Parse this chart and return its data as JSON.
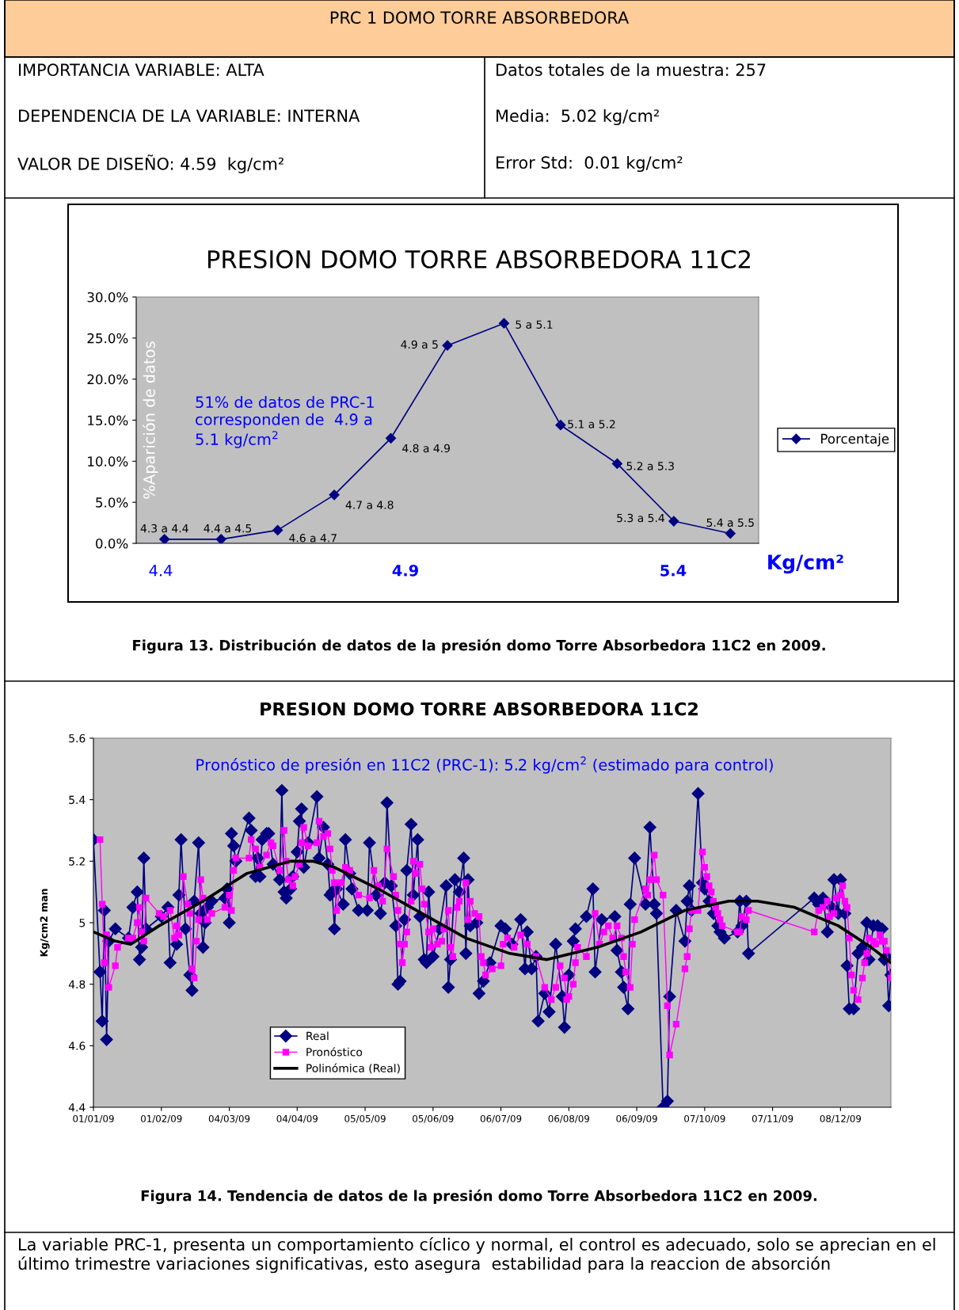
{
  "chart_data": [
    {
      "type": "other",
      "title": "PRC 1 DOMO TORRE ABSORBEDORA",
      "annotations": [
        "IMPORTANCIA VARIABLE: ALTA",
        "DEPENDENCIA DE LA VARIABLE: INTERNA",
        "VALOR DE DISEÑO: 4.59  kg/cm²",
        "Datos totales de la muestra: 257",
        "Media:  5.02 kg/cm²",
        "Error Std:  0.01 kg/cm²"
      ]
    },
    {
      "type": "line",
      "title": "PRESION DOMO TORRE ABSORBEDORA 11C2",
      "ylabel": "%Aparición de datos",
      "xlabel": "Kg/cm²",
      "categories": [
        null,
        null,
        null,
        null,
        null,
        null,
        null,
        null,
        null,
        null,
        null
      ],
      "series": [
        {
          "name": "Porcentaje",
          "color": "#000080",
          "values": [
            0.5,
            0.5,
            1.6,
            5.9,
            12.8,
            24.1,
            26.8,
            14.4,
            9.7,
            2.7,
            1.2
          ]
        }
      ],
      "marker": "diamond",
      "line_style": "solid",
      "ylim": [
        0,
        30
      ],
      "yticks": [
        {
          "value": 0,
          "label": "0.0%"
        },
        {
          "value": 5,
          "label": "5.0%"
        },
        {
          "value": 10,
          "label": "10.0%"
        },
        {
          "value": 15,
          "label": "15.0%"
        },
        {
          "value": 20,
          "label": "20.0%"
        },
        {
          "value": 25,
          "label": "25.0%"
        },
        {
          "value": 30,
          "label": "30.0%"
        }
      ],
      "tick_labels": "y",
      "grid": false,
      "legend": "right",
      "annotations": [
        "4.3 a 4.4",
        "4.4 a 4.5",
        "4.6 a 4.7",
        "4.7 a 4.8",
        "4.8 a 4.9",
        "4.9 a 5",
        "5 a 5.1",
        "5.1 a 5.2",
        "5.2 a 5.3",
        "5.3 a 5.4",
        "5.4 a 5.5",
        "51% de datos de PRC-1\ncorresponden de  4.9 a\n5.1 kg/cm$^{2}$",
        "4.4",
        "4.9",
        "5.4",
        "Figura 13. Distribución de datos de la presión domo Torre Absorbedora 11C2 en 2009."
      ]
    },
    {
      "type": "line",
      "title": "PRESION DOMO TORRE ABSORBEDORA 11C2",
      "ylabel": "Kg/cm2 man",
      "series": [
        {
          "name": "Real",
          "color": "#000080",
          "marker": "diamond",
          "x": [
            "2009-01-01",
            "2009-01-04",
            "2009-01-05",
            "2009-01-06",
            "2009-01-07",
            "2009-01-08",
            "2009-01-11",
            "2009-01-17",
            "2009-01-19",
            "2009-01-21",
            "2009-01-22",
            "2009-01-23",
            "2009-01-24",
            "2009-01-25",
            "2009-02-01",
            "2009-02-04",
            "2009-02-05",
            "2009-02-08",
            "2009-02-09",
            "2009-02-10",
            "2009-02-12",
            "2009-02-14",
            "2009-02-15",
            "2009-02-16",
            "2009-02-18",
            "2009-02-19",
            "2009-02-20",
            "2009-02-21",
            "2009-02-22",
            "2009-02-24",
            "2009-03-02",
            "2009-03-03",
            "2009-03-04",
            "2009-03-05",
            "2009-03-06",
            "2009-03-07",
            "2009-03-13",
            "2009-03-14",
            "2009-03-16",
            "2009-03-17",
            "2009-03-18",
            "2009-03-19",
            "2009-03-21",
            "2009-03-22",
            "2009-03-24",
            "2009-03-27",
            "2009-03-28",
            "2009-03-29",
            "2009-03-30",
            "2009-04-01",
            "2009-04-02",
            "2009-04-04",
            "2009-04-05",
            "2009-04-06",
            "2009-04-07",
            "2009-04-09",
            "2009-04-13",
            "2009-04-14",
            "2009-04-16",
            "2009-04-18",
            "2009-04-19",
            "2009-04-20",
            "2009-04-21",
            "2009-04-22",
            "2009-04-25",
            "2009-04-26",
            "2009-04-28",
            "2009-04-29",
            "2009-05-02",
            "2009-05-06",
            "2009-05-07",
            "2009-05-10",
            "2009-05-12",
            "2009-05-14",
            "2009-05-15",
            "2009-05-17",
            "2009-05-19",
            "2009-05-20",
            "2009-05-21",
            "2009-05-23",
            "2009-05-24",
            "2009-05-26",
            "2009-05-27",
            "2009-05-29",
            "2009-05-30",
            "2009-06-01",
            "2009-06-02",
            "2009-06-03",
            "2009-06-05",
            "2009-06-08",
            "2009-06-11",
            "2009-06-12",
            "2009-06-13",
            "2009-06-15",
            "2009-06-17",
            "2009-06-19",
            "2009-06-20",
            "2009-06-21",
            "2009-06-22",
            "2009-06-25",
            "2009-06-26",
            "2009-06-28",
            "2009-07-01",
            "2009-07-06",
            "2009-07-08",
            "2009-07-11",
            "2009-07-15",
            "2009-07-17",
            "2009-07-18",
            "2009-07-20",
            "2009-07-22",
            "2009-07-23",
            "2009-07-26",
            "2009-07-28",
            "2009-07-31",
            "2009-08-03",
            "2009-08-04",
            "2009-08-06",
            "2009-08-08",
            "2009-08-09",
            "2009-08-14",
            "2009-08-17",
            "2009-08-18",
            "2009-08-21",
            "2009-08-27",
            "2009-08-28",
            "2009-08-30",
            "2009-08-31",
            "2009-09-02",
            "2009-09-03",
            "2009-09-05",
            "2009-09-10",
            "2009-09-12",
            "2009-09-14",
            "2009-09-15",
            "2009-09-18",
            "2009-09-20",
            "2009-09-21",
            "2009-09-24",
            "2009-09-28",
            "2009-09-29",
            "2009-09-30",
            "2009-10-01",
            "2009-10-04",
            "2009-10-06",
            "2009-10-07",
            "2009-10-09",
            "2009-10-11",
            "2009-10-13",
            "2009-10-14",
            "2009-10-16",
            "2009-10-22",
            "2009-10-23",
            "2009-10-24",
            "2009-10-26",
            "2009-10-27",
            "2009-11-26",
            "2009-11-28",
            "2009-11-30",
            "2009-12-02",
            "2009-12-04",
            "2009-12-05",
            "2009-12-07",
            "2009-12-08",
            "2009-12-10",
            "2009-12-11",
            "2009-12-12",
            "2009-12-14",
            "2009-12-16",
            "2009-12-18",
            "2009-12-20",
            "2009-12-21",
            "2009-12-23",
            "2009-12-25",
            "2009-12-27",
            "2009-12-28",
            "2009-12-29",
            "2009-12-30",
            "2009-12-31"
          ],
          "values": [
            5.27,
            4.84,
            4.68,
            5.04,
            4.62,
            4.94,
            4.98,
            4.95,
            5.05,
            5.1,
            4.88,
            4.92,
            5.21,
            4.98,
            5.02,
            5.05,
            4.87,
            4.93,
            5.09,
            5.27,
            4.98,
            4.83,
            4.78,
            5.07,
            5.26,
            5.03,
            4.92,
            5.0,
            5.05,
            5.07,
            5.08,
            5.11,
            5.0,
            5.29,
            5.25,
            5.2,
            5.34,
            5.3,
            5.15,
            5.21,
            5.15,
            5.27,
            5.29,
            5.29,
            5.19,
            5.14,
            5.43,
            5.1,
            5.08,
            5.11,
            5.15,
            5.23,
            5.33,
            5.37,
            5.18,
            5.26,
            5.41,
            5.21,
            5.31,
            5.19,
            5.09,
            5.1,
            4.98,
            5.11,
            5.06,
            5.27,
            5.16,
            5.11,
            5.04,
            5.04,
            5.26,
            5.09,
            5.03,
            5.13,
            5.39,
            5.12,
            4.99,
            4.8,
            4.81,
            5.01,
            5.17,
            5.32,
            5.09,
            5.27,
            5.02,
            4.88,
            4.87,
            5.1,
            4.89,
            4.98,
            5.12,
            4.79,
            4.88,
            5.14,
            5.1,
            5.21,
            4.9,
            5.14,
            4.99,
            5.0,
            4.77,
            4.81,
            4.87,
            4.99,
            4.98,
            4.93,
            5.01,
            4.85,
            4.97,
            4.85,
            4.89,
            4.68,
            4.77,
            4.71,
            4.93,
            4.76,
            4.66,
            4.83,
            4.94,
            4.98,
            5.02,
            5.11,
            4.84,
            5.01,
            5.02,
            4.91,
            4.84,
            4.79,
            4.72,
            5.06,
            5.21,
            5.06,
            5.31,
            5.06,
            5.03,
            4.4,
            4.42,
            4.76,
            5.04,
            4.94,
            5.07,
            5.12,
            5.04,
            5.42,
            5.13,
            5.11,
            5.07,
            5.03,
            4.99,
            4.97,
            4.95,
            4.97,
            5.07,
            4.99,
            5.07,
            4.9,
            5.08,
            5.06,
            5.08,
            4.97,
            5.05,
            5.14,
            5.03,
            5.14,
            5.03,
            4.86,
            4.72,
            4.72,
            4.9,
            4.92,
            5.0,
            4.88,
            4.99,
            4.99,
            4.98,
            4.88,
            4.89,
            4.73,
            4.83
          ]
        },
        {
          "name": "Pronóstico",
          "color": "#ff00ff",
          "marker": "square",
          "x": [
            "2009-01-04",
            "2009-01-05",
            "2009-01-06",
            "2009-01-07",
            "2009-01-08",
            "2009-01-11",
            "2009-01-12",
            "2009-01-17",
            "2009-01-19",
            "2009-01-21",
            "2009-01-22",
            "2009-01-23",
            "2009-01-24",
            "2009-01-25",
            "2009-01-31",
            "2009-02-02",
            "2009-02-05",
            "2009-02-07",
            "2009-02-08",
            "2009-02-09",
            "2009-02-11",
            "2009-02-13",
            "2009-02-14",
            "2009-02-15",
            "2009-02-16",
            "2009-02-17",
            "2009-02-18",
            "2009-02-19",
            "2009-02-20",
            "2009-02-22",
            "2009-02-24",
            "2009-03-02",
            "2009-03-04",
            "2009-03-05",
            "2009-03-06",
            "2009-03-07",
            "2009-03-13",
            "2009-03-14",
            "2009-03-16",
            "2009-03-18",
            "2009-03-21",
            "2009-03-23",
            "2009-03-24",
            "2009-03-27",
            "2009-03-29",
            "2009-03-30",
            "2009-03-31",
            "2009-04-02",
            "2009-04-03",
            "2009-04-05",
            "2009-04-06",
            "2009-04-07",
            "2009-04-09",
            "2009-04-13",
            "2009-04-14",
            "2009-04-16",
            "2009-04-18",
            "2009-04-19",
            "2009-04-20",
            "2009-04-21",
            "2009-04-22",
            "2009-04-24",
            "2009-04-26",
            "2009-04-28",
            "2009-05-02",
            "2009-05-07",
            "2009-05-09",
            "2009-05-11",
            "2009-05-13",
            "2009-05-15",
            "2009-05-18",
            "2009-05-19",
            "2009-05-20",
            "2009-05-21",
            "2009-05-22",
            "2009-05-23",
            "2009-05-24",
            "2009-05-26",
            "2009-05-27",
            "2009-05-28",
            "2009-05-30",
            "2009-05-31",
            "2009-06-01",
            "2009-06-03",
            "2009-06-04",
            "2009-06-05",
            "2009-06-07",
            "2009-06-09",
            "2009-06-10",
            "2009-06-12",
            "2009-06-13",
            "2009-06-14",
            "2009-06-16",
            "2009-06-17",
            "2009-06-20",
            "2009-06-21",
            "2009-06-22",
            "2009-06-24",
            "2009-06-26",
            "2009-06-27",
            "2009-06-28",
            "2009-06-29",
            "2009-07-02",
            "2009-07-06",
            "2009-07-07",
            "2009-07-09",
            "2009-07-12",
            "2009-07-15",
            "2009-07-18",
            "2009-07-22",
            "2009-07-26",
            "2009-07-29",
            "2009-07-31",
            "2009-08-02",
            "2009-08-04",
            "2009-08-05",
            "2009-08-06",
            "2009-08-08",
            "2009-08-09",
            "2009-08-10",
            "2009-08-14",
            "2009-08-18",
            "2009-08-20",
            "2009-08-22",
            "2009-08-24",
            "2009-08-26",
            "2009-08-28",
            "2009-08-30",
            "2009-08-31",
            "2009-09-01",
            "2009-09-03",
            "2009-09-04",
            "2009-09-05",
            "2009-09-10",
            "2009-09-11",
            "2009-09-12",
            "2009-09-14",
            "2009-09-15",
            "2009-09-18",
            "2009-09-20",
            "2009-09-21",
            "2009-09-24",
            "2009-09-28",
            "2009-09-29",
            "2009-09-30",
            "2009-10-01",
            "2009-10-04",
            "2009-10-06",
            "2009-10-07",
            "2009-10-08",
            "2009-10-09",
            "2009-10-10",
            "2009-10-11",
            "2009-10-12",
            "2009-10-13",
            "2009-10-14",
            "2009-10-15",
            "2009-10-22",
            "2009-10-23",
            "2009-10-24",
            "2009-10-26",
            "2009-10-27",
            "2009-11-26",
            "2009-11-28",
            "2009-11-30",
            "2009-12-02",
            "2009-12-03",
            "2009-12-05",
            "2009-12-06",
            "2009-12-08",
            "2009-12-09",
            "2009-12-10",
            "2009-12-11",
            "2009-12-12",
            "2009-12-13",
            "2009-12-14",
            "2009-12-16",
            "2009-12-18",
            "2009-12-19",
            "2009-12-20",
            "2009-12-21",
            "2009-12-23",
            "2009-12-24",
            "2009-12-26",
            "2009-12-27",
            "2009-12-28",
            "2009-12-29",
            "2009-12-31"
          ],
          "values": [
            5.27,
            5.06,
            4.87,
            4.96,
            4.79,
            4.86,
            4.92,
            4.95,
            4.95,
            5.0,
            5.05,
            4.97,
            4.94,
            5.08,
            5.03,
            5.02,
            5.04,
            4.95,
            4.99,
            4.96,
            5.15,
            5.06,
            5.03,
            4.85,
            4.82,
            4.94,
            5.01,
            5.14,
            5.08,
            5.01,
            5.03,
            5.05,
            5.09,
            5.04,
            5.17,
            5.21,
            5.21,
            5.27,
            5.24,
            5.18,
            5.22,
            5.26,
            5.25,
            5.17,
            5.3,
            5.2,
            5.14,
            5.12,
            5.15,
            5.19,
            5.26,
            5.31,
            5.25,
            5.26,
            5.33,
            5.28,
            5.29,
            5.24,
            5.17,
            5.13,
            5.04,
            5.13,
            5.18,
            5.17,
            5.09,
            5.08,
            5.17,
            5.12,
            5.07,
            5.24,
            5.15,
            5.09,
            5.04,
            4.93,
            4.87,
            4.93,
            4.97,
            5.07,
            5.2,
            5.16,
            5.19,
            5.11,
            5.06,
            4.97,
            4.92,
            4.98,
            4.93,
            4.94,
            4.98,
            5.04,
            4.92,
            4.89,
            5.05,
            5.07,
            5.13,
            5.01,
            5.07,
            5.03,
            5.02,
            4.89,
            4.87,
            4.83,
            4.85,
            4.86,
            4.93,
            4.95,
            4.92,
            4.96,
            4.93,
            4.89,
            4.79,
            4.75,
            4.79,
            4.86,
            4.82,
            4.75,
            4.76,
            4.8,
            4.87,
            4.92,
            4.89,
            5.03,
            4.93,
            4.97,
            4.99,
            4.95,
            4.99,
            4.95,
            4.89,
            4.84,
            4.79,
            4.93,
            5.01,
            5.11,
            5.09,
            5.14,
            5.22,
            5.14,
            5.09,
            4.73,
            4.57,
            4.67,
            4.85,
            4.89,
            4.98,
            5.04,
            5.04,
            5.23,
            5.18,
            5.15,
            5.12,
            5.1,
            5.07,
            5.05,
            5.03,
            5.01,
            4.99,
            4.97,
            4.97,
            5.02,
            5.01,
            5.04,
            4.97,
            5.04,
            5.05,
            5.07,
            5.02,
            5.03,
            5.08,
            5.09,
            5.12,
            5.07,
            5.05,
            4.95,
            4.83,
            4.78,
            4.75,
            4.82,
            4.87,
            4.9,
            4.95,
            4.94,
            4.93,
            4.96,
            4.94,
            4.94,
            4.91,
            4.82
          ]
        },
        {
          "name": "Polinómica (Real)",
          "color": "#000000",
          "marker": "none",
          "x": [
            "2009-01-01",
            "2009-01-11",
            "2009-01-18",
            "2009-01-31",
            "2009-02-20",
            "2009-03-12",
            "2009-04-01",
            "2009-04-11",
            "2009-04-21",
            "2009-05-11",
            "2009-05-31",
            "2009-06-20",
            "2009-07-10",
            "2009-07-27",
            "2009-08-19",
            "2009-09-08",
            "2009-09-28",
            "2009-10-18",
            "2009-10-31",
            "2009-11-17",
            "2009-12-07",
            "2009-12-22",
            "2009-12-31"
          ],
          "values": [
            4.97,
            4.94,
            4.93,
            4.99,
            5.07,
            5.16,
            5.2,
            5.2,
            5.18,
            5.11,
            5.03,
            4.95,
            4.9,
            4.88,
            4.92,
            4.97,
            5.04,
            5.07,
            5.07,
            5.05,
            4.99,
            4.92,
            4.87
          ]
        }
      ],
      "line_style": "solid",
      "xlim": [
        "2009-01-01",
        "2009-12-31"
      ],
      "xticks": [
        {
          "value": "2009-01-01",
          "label": "01/01/09"
        },
        {
          "value": "2009-02-01",
          "label": "01/02/09"
        },
        {
          "value": "2009-03-04",
          "label": "04/03/09"
        },
        {
          "value": "2009-04-04",
          "label": "04/04/09"
        },
        {
          "value": "2009-05-05",
          "label": "05/05/09"
        },
        {
          "value": "2009-06-05",
          "label": "05/06/09"
        },
        {
          "value": "2009-07-06",
          "label": "06/07/09"
        },
        {
          "value": "2009-08-06",
          "label": "06/08/09"
        },
        {
          "value": "2009-09-06",
          "label": "06/09/09"
        },
        {
          "value": "2009-10-07",
          "label": "07/10/09"
        },
        {
          "value": "2009-11-07",
          "label": "07/11/09"
        },
        {
          "value": "2009-12-08",
          "label": "08/12/09"
        }
      ],
      "ylim": [
        4.4,
        5.6
      ],
      "yticks": [
        4.4,
        4.6,
        4.8,
        5,
        5.2,
        5.4,
        5.6
      ],
      "grid": false,
      "legend": "bottom left",
      "annotations": [
        "Pronóstico de presión en 11C2 (PRC-1): 5.2 kg/cm$^{2}$ (estimado para control)",
        "Figura 14. Tendencia de datos de la presión domo Torre Absorbedora 11C2 en 2009.",
        "La variable PRC-1, presenta un comportamiento cíclico y normal, el control es adecuado, solo se aprecian en el último trimestre variaciones significativas, esto asegura  estabilidad para la reaccion de absorción"
      ]
    }
  ]
}
